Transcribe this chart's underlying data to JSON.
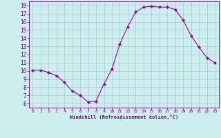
{
  "x": [
    0,
    1,
    2,
    3,
    4,
    5,
    6,
    7,
    8,
    9,
    10,
    11,
    12,
    13,
    14,
    15,
    16,
    17,
    18,
    19,
    20,
    21,
    22,
    23
  ],
  "y": [
    10.1,
    10.1,
    9.8,
    9.4,
    8.6,
    7.5,
    7.0,
    6.2,
    6.3,
    8.4,
    10.2,
    13.3,
    15.4,
    17.2,
    17.8,
    17.9,
    17.8,
    17.8,
    17.5,
    16.2,
    14.3,
    12.9,
    11.6,
    11.0
  ],
  "line_color": "#990099",
  "marker": "D",
  "marker_size": 2,
  "xlabel": "Windchill (Refroidissement éolien,°C)",
  "xlim": [
    -0.5,
    23.5
  ],
  "ylim": [
    5.5,
    18.5
  ],
  "yticks": [
    6,
    7,
    8,
    9,
    10,
    11,
    12,
    13,
    14,
    15,
    16,
    17,
    18
  ],
  "xticks": [
    0,
    1,
    2,
    3,
    4,
    5,
    6,
    7,
    8,
    9,
    10,
    11,
    12,
    13,
    14,
    15,
    16,
    17,
    18,
    19,
    20,
    21,
    22,
    23
  ],
  "bg_color": "#cceeee",
  "grid_color": "#aabbcc",
  "label_color": "#660066",
  "tick_color": "#660066",
  "spine_color": "#660066"
}
